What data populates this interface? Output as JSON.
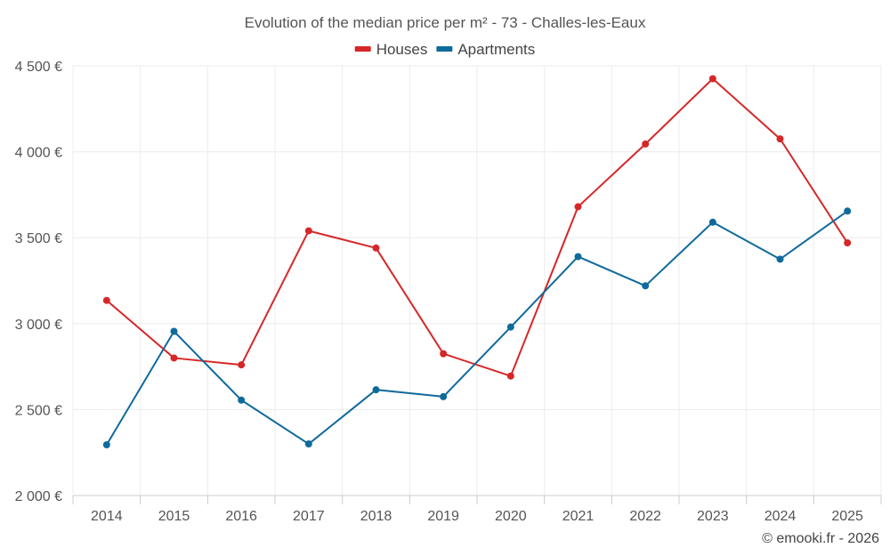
{
  "chart_data": {
    "type": "line",
    "title": "Evolution of the median price per m² - 73 - Challes-les-Eaux",
    "categories": [
      "2014",
      "2015",
      "2016",
      "2017",
      "2018",
      "2019",
      "2020",
      "2021",
      "2022",
      "2023",
      "2024",
      "2025"
    ],
    "series": [
      {
        "name": "Houses",
        "color": "#d62728",
        "values": [
          3135,
          2800,
          2760,
          3540,
          3440,
          2825,
          2695,
          3680,
          4045,
          4425,
          4075,
          3470
        ]
      },
      {
        "name": "Apartments",
        "color": "#0f6a9c",
        "values": [
          2295,
          2955,
          2555,
          2300,
          2615,
          2575,
          2980,
          3390,
          3220,
          3590,
          3375,
          3655
        ]
      }
    ],
    "ylim": [
      2000,
      4500
    ],
    "yticks": [
      2000,
      2500,
      3000,
      3500,
      4000,
      4500
    ],
    "ytick_labels": [
      "2 000 €",
      "2 500 €",
      "3 000 €",
      "3 500 €",
      "4 000 €",
      "4 500 €"
    ],
    "xlabel": "",
    "ylabel": "",
    "grid": true,
    "legend_position": "top-center"
  },
  "credit": "© emooki.fr - 2026"
}
